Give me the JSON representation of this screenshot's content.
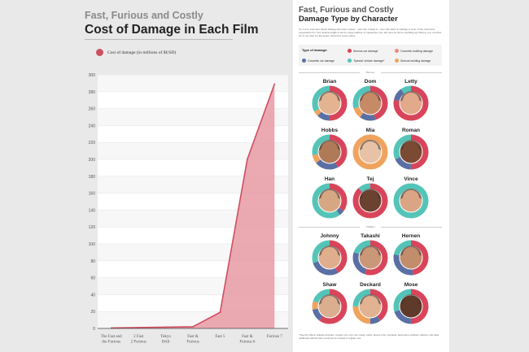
{
  "left": {
    "subtitle": "Fast, Furious and Costly",
    "title": "Cost of Damage in Each Film",
    "legend_label": "Cost of damage (in millions of $USD)"
  },
  "chart_data": {
    "type": "area",
    "categories": [
      [
        "The Fast and",
        "the Furious"
      ],
      [
        "2 Fast",
        "2 Furious"
      ],
      [
        "Tokyo",
        "Drift"
      ],
      [
        "Fast &",
        "Furious"
      ],
      [
        "Fast 5"
      ],
      [
        "Fast &",
        "Furious 6"
      ],
      [
        "Furious 7"
      ]
    ],
    "values": [
      0.5,
      1,
      1.5,
      2,
      19,
      200,
      289
    ],
    "ylim": [
      0,
      300
    ],
    "yticks": [
      0,
      20,
      40,
      60,
      80,
      100,
      120,
      140,
      160,
      180,
      200,
      220,
      240,
      260,
      280,
      300
    ],
    "series_name": "Cost of damage (in millions of $USD)",
    "color": "#cf4f60",
    "fill_color": "#e89aa5",
    "grid": true
  },
  "right": {
    "subtitle": "Fast, Furious and Costly",
    "title": "Damage Type by Character",
    "intro": "So, we've seen how much damage has been caused – and who caused it – but what kind of damage is each of the characters responsible for? Tej, Roman might scratch a large number of expensive cars, but does he throw anything up? Below you can find all of our data for the major characters in the series.",
    "key_title": "Type of damage:",
    "key": [
      {
        "label": "Serious car damage",
        "color": "#d8455a"
      },
      {
        "label": "Cosmetic building damage",
        "color": "#ec8a7e"
      },
      {
        "label": "Cosmetic car damage",
        "color": "#5a6fa3"
      },
      {
        "label": "'Special' vehicle damage*",
        "color": "#54c4b8"
      },
      {
        "label": "Serious building damage",
        "color": "#f0a35e"
      }
    ],
    "heroes_label": "Heroes",
    "villains_label": "Villains",
    "footnote": "*Special vehicle damage includes: custom cars, race cars, buses, trains, motorcycles, airplanes, helicopters, military vehicles, and other additional vehicles that would not be classed as regular cars."
  },
  "heroes": [
    {
      "name": "Brian",
      "segments": [
        0.5,
        0.12,
        0.05,
        0.33
      ],
      "skin": "#e4b38f"
    },
    {
      "name": "Dom",
      "segments": [
        0.45,
        0.15,
        0.1,
        0.3
      ],
      "skin": "#c68b66"
    },
    {
      "name": "Letty",
      "segments": [
        0.78,
        0.12,
        0.0,
        0.1
      ],
      "skin": "#e2a98a"
    },
    {
      "name": "Hobbs",
      "segments": [
        0.42,
        0.22,
        0.08,
        0.28
      ],
      "skin": "#b07a58"
    },
    {
      "name": "Mia",
      "segments": [
        0.0,
        0.0,
        1.0,
        0.0
      ],
      "skin": "#e7c2a6"
    },
    {
      "name": "Roman",
      "segments": [
        0.5,
        0.18,
        0.0,
        0.32
      ],
      "skin": "#7a4a33"
    },
    {
      "name": "Han",
      "segments": [
        0.35,
        0.05,
        0.0,
        0.6
      ],
      "skin": "#d7a784"
    },
    {
      "name": "Tej",
      "segments": [
        0.88,
        0.0,
        0.0,
        0.12
      ],
      "skin": "#6b4130"
    },
    {
      "name": "Vince",
      "segments": [
        0.0,
        0.0,
        0.0,
        1.0
      ],
      "skin": "#d9a584"
    }
  ],
  "villains": [
    {
      "name": "Johnny",
      "segments": [
        0.42,
        0.28,
        0.0,
        0.3
      ],
      "skin": "#e0ae8c"
    },
    {
      "name": "Takashi",
      "segments": [
        0.55,
        0.25,
        0.0,
        0.2
      ],
      "skin": "#c99878"
    },
    {
      "name": "Hernen",
      "segments": [
        0.48,
        0.3,
        0.0,
        0.22
      ],
      "skin": "#c28d6b"
    },
    {
      "name": "Shaw",
      "segments": [
        0.6,
        0.12,
        0.08,
        0.2
      ],
      "skin": "#dcae90"
    },
    {
      "name": "Deckard",
      "segments": [
        0.4,
        0.1,
        0.25,
        0.25
      ],
      "skin": "#e1b392"
    },
    {
      "name": "Mose",
      "segments": [
        0.5,
        0.2,
        0.0,
        0.3
      ],
      "skin": "#5e3a2a"
    }
  ]
}
